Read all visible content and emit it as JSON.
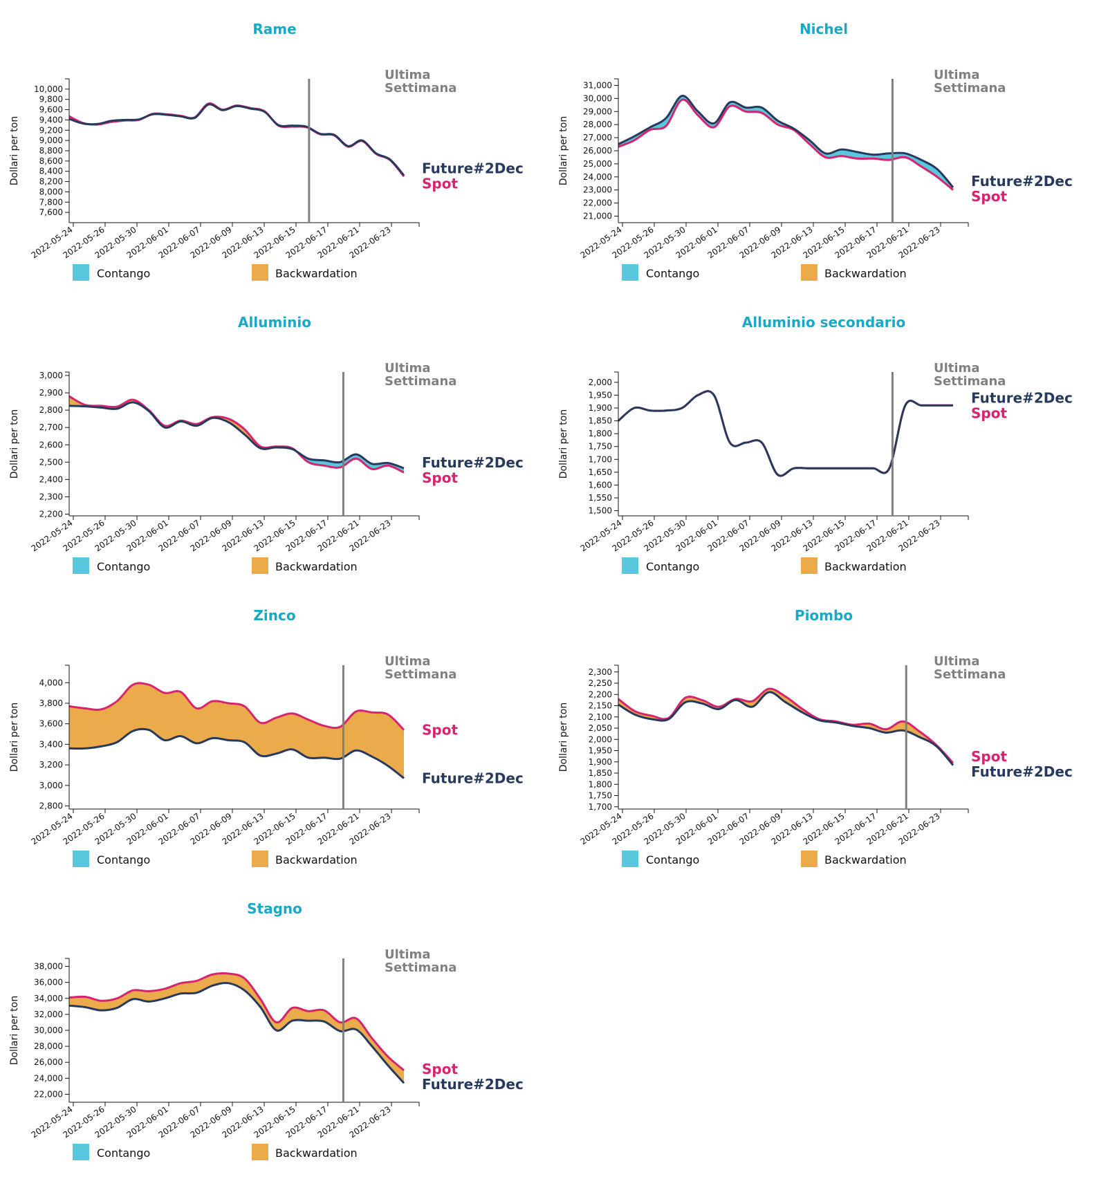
{
  "colors": {
    "title": "#1aa8c6",
    "spot": "#d6246e",
    "future": "#273a5e",
    "contango": "#5ac8dc",
    "backwardation": "#ebab4b",
    "marker": "#808080",
    "axis": "#111111"
  },
  "labels": {
    "ylabel": "Dollari per ton",
    "marker_line1": "Ultima",
    "marker_line2": "Settimana",
    "future": "Future#2Dec",
    "spot": "Spot",
    "legend_contango": "Contango",
    "legend_backwardation": "Backwardation"
  },
  "chart_data": [
    {
      "type": "area",
      "title": "Rame",
      "xlabel": "",
      "ylabel": "Dollari per ton",
      "x_ticks": [
        "2022-05-24",
        "2022-05-26",
        "2022-05-30",
        "2022-06-01",
        "2022-06-07",
        "2022-06-09",
        "2022-06-13",
        "2022-06-15",
        "2022-06-17",
        "2022-06-21",
        "2022-06-23"
      ],
      "y_ticks": [
        "7,600",
        "7,800",
        "8,000",
        "8,200",
        "8,400",
        "8,600",
        "8,800",
        "9,000",
        "9,200",
        "9,400",
        "9,600",
        "9,800",
        "10,000"
      ],
      "ylim": [
        7400,
        10200
      ],
      "marker_index": 17.2,
      "series": [
        {
          "name": "Spot",
          "values": [
            9470,
            9340,
            9310,
            9360,
            9390,
            9400,
            9520,
            9510,
            9480,
            9450,
            9720,
            9600,
            9680,
            9630,
            9570,
            9290,
            9270,
            9260,
            9120,
            9100,
            8880,
            8990,
            8740,
            8620,
            8300
          ]
        },
        {
          "name": "Future#2Dec",
          "values": [
            9420,
            9330,
            9320,
            9380,
            9400,
            9410,
            9510,
            9500,
            9470,
            9440,
            9700,
            9590,
            9670,
            9620,
            9560,
            9300,
            9290,
            9270,
            9130,
            9110,
            8890,
            9000,
            8750,
            8630,
            8320
          ]
        }
      ]
    },
    {
      "type": "area",
      "title": "Nichel",
      "xlabel": "",
      "ylabel": "Dollari per ton",
      "x_ticks": [
        "2022-05-24",
        "2022-05-26",
        "2022-05-30",
        "2022-06-01",
        "2022-06-07",
        "2022-06-09",
        "2022-06-13",
        "2022-06-15",
        "2022-06-17",
        "2022-06-21",
        "2022-06-23"
      ],
      "y_ticks": [
        "21,000",
        "22,000",
        "23,000",
        "24,000",
        "25,000",
        "26,000",
        "27,000",
        "28,000",
        "29,000",
        "30,000",
        "31,000"
      ],
      "ylim": [
        20500,
        31500
      ],
      "marker_index": 17.2,
      "series": [
        {
          "name": "Spot",
          "values": [
            26300,
            26800,
            27600,
            27900,
            29900,
            28700,
            27800,
            29400,
            29000,
            28900,
            28000,
            27600,
            26500,
            25500,
            25600,
            25400,
            25400,
            25300,
            25500,
            24800,
            24000,
            23000
          ]
        },
        {
          "name": "Future#2Dec",
          "values": [
            26500,
            27100,
            27800,
            28500,
            30200,
            29000,
            28100,
            29700,
            29300,
            29300,
            28300,
            27700,
            26800,
            25800,
            26100,
            25900,
            25700,
            25800,
            25800,
            25300,
            24600,
            23200
          ]
        }
      ]
    },
    {
      "type": "area",
      "title": "Alluminio",
      "xlabel": "",
      "ylabel": "Dollari per ton",
      "x_ticks": [
        "2022-05-24",
        "2022-05-26",
        "2022-05-30",
        "2022-06-01",
        "2022-06-07",
        "2022-06-09",
        "2022-06-13",
        "2022-06-15",
        "2022-06-17",
        "2022-06-21",
        "2022-06-23"
      ],
      "y_ticks": [
        "2,200",
        "2,300",
        "2,400",
        "2,500",
        "2,600",
        "2,700",
        "2,800",
        "2,900",
        "3,000"
      ],
      "ylim": [
        2190,
        3020
      ],
      "marker_index": 17.2,
      "series": [
        {
          "name": "Spot",
          "values": [
            2880,
            2830,
            2825,
            2820,
            2860,
            2800,
            2710,
            2740,
            2720,
            2760,
            2750,
            2690,
            2590,
            2590,
            2580,
            2500,
            2480,
            2470,
            2520,
            2460,
            2480,
            2440
          ]
        },
        {
          "name": "Future#2Dec",
          "values": [
            2825,
            2822,
            2815,
            2808,
            2845,
            2795,
            2700,
            2735,
            2710,
            2755,
            2730,
            2660,
            2580,
            2585,
            2575,
            2520,
            2510,
            2500,
            2545,
            2490,
            2495,
            2465
          ]
        }
      ]
    },
    {
      "type": "area",
      "title": "Alluminio secondario",
      "xlabel": "",
      "ylabel": "Dollari per ton",
      "x_ticks": [
        "2022-05-24",
        "2022-05-26",
        "2022-05-30",
        "2022-06-01",
        "2022-06-07",
        "2022-06-09",
        "2022-06-13",
        "2022-06-15",
        "2022-06-17",
        "2022-06-21",
        "2022-06-23"
      ],
      "y_ticks": [
        "1,500",
        "1,550",
        "1,600",
        "1,650",
        "1,700",
        "1,750",
        "1,800",
        "1,850",
        "1,900",
        "1,950",
        "2,000"
      ],
      "ylim": [
        1480,
        2040
      ],
      "marker_index": 17.2,
      "series": [
        {
          "name": "Spot",
          "values": [
            1850,
            1900,
            1890,
            1890,
            1900,
            1950,
            1950,
            1765,
            1765,
            1765,
            1640,
            1665,
            1665,
            1665,
            1665,
            1665,
            1665,
            1665,
            1910,
            1910,
            1910,
            1910
          ]
        },
        {
          "name": "Future#2Dec",
          "values": [
            1850,
            1900,
            1890,
            1890,
            1900,
            1950,
            1950,
            1765,
            1765,
            1765,
            1640,
            1665,
            1665,
            1665,
            1665,
            1665,
            1665,
            1665,
            1910,
            1910,
            1910,
            1910
          ]
        }
      ]
    },
    {
      "type": "area",
      "title": "Zinco",
      "xlabel": "",
      "ylabel": "Dollari per ton",
      "x_ticks": [
        "2022-05-24",
        "2022-05-26",
        "2022-05-30",
        "2022-06-01",
        "2022-06-07",
        "2022-06-09",
        "2022-06-13",
        "2022-06-15",
        "2022-06-17",
        "2022-06-21",
        "2022-06-23"
      ],
      "y_ticks": [
        "2,800",
        "3,000",
        "3,200",
        "3,400",
        "3,600",
        "3,800",
        "4,000"
      ],
      "ylim": [
        2770,
        4170
      ],
      "marker_index": 17.2,
      "series": [
        {
          "name": "Spot",
          "values": [
            3770,
            3750,
            3740,
            3820,
            3980,
            3980,
            3900,
            3910,
            3750,
            3820,
            3800,
            3770,
            3610,
            3660,
            3700,
            3640,
            3580,
            3570,
            3720,
            3710,
            3690,
            3540
          ]
        },
        {
          "name": "Future#2Dec",
          "values": [
            3360,
            3360,
            3380,
            3420,
            3530,
            3540,
            3440,
            3480,
            3410,
            3460,
            3440,
            3420,
            3290,
            3310,
            3350,
            3270,
            3270,
            3260,
            3340,
            3280,
            3190,
            3070
          ]
        }
      ]
    },
    {
      "type": "area",
      "title": "Piombo",
      "xlabel": "",
      "ylabel": "Dollari per ton",
      "x_ticks": [
        "2022-05-24",
        "2022-05-26",
        "2022-05-30",
        "2022-06-01",
        "2022-06-07",
        "2022-06-09",
        "2022-06-13",
        "2022-06-15",
        "2022-06-17",
        "2022-06-21",
        "2022-06-23"
      ],
      "y_ticks": [
        "1,700",
        "1,750",
        "1,800",
        "1,850",
        "1,900",
        "1,950",
        "2,000",
        "2,050",
        "2,100",
        "2,150",
        "2,200",
        "2,250",
        "2,300"
      ],
      "ylim": [
        1690,
        2330
      ],
      "marker_index": 17.2,
      "series": [
        {
          "name": "Spot",
          "values": [
            2180,
            2125,
            2105,
            2095,
            2185,
            2175,
            2145,
            2180,
            2170,
            2225,
            2190,
            2135,
            2090,
            2080,
            2065,
            2070,
            2045,
            2080,
            2035,
            1975,
            1895
          ]
        },
        {
          "name": "Future#2Dec",
          "values": [
            2155,
            2110,
            2090,
            2090,
            2165,
            2160,
            2135,
            2175,
            2145,
            2210,
            2165,
            2120,
            2085,
            2075,
            2060,
            2050,
            2030,
            2040,
            2010,
            1970,
            1885
          ]
        }
      ]
    },
    {
      "type": "area",
      "title": "Stagno",
      "xlabel": "",
      "ylabel": "Dollari per ton",
      "x_ticks": [
        "2022-05-24",
        "2022-05-26",
        "2022-05-30",
        "2022-06-01",
        "2022-06-07",
        "2022-06-09",
        "2022-06-13",
        "2022-06-15",
        "2022-06-17",
        "2022-06-21",
        "2022-06-23"
      ],
      "y_ticks": [
        "22,000",
        "24,000",
        "26,000",
        "28,000",
        "30,000",
        "32,000",
        "34,000",
        "36,000",
        "38,000"
      ],
      "ylim": [
        21000,
        39000
      ],
      "marker_index": 17.2,
      "series": [
        {
          "name": "Spot",
          "values": [
            34100,
            34200,
            33700,
            34000,
            35000,
            34900,
            35200,
            35900,
            36200,
            37000,
            37100,
            36500,
            33900,
            31000,
            32800,
            32400,
            32500,
            31000,
            31500,
            29000,
            26700,
            25000
          ]
        },
        {
          "name": "Future#2Dec",
          "values": [
            33100,
            32900,
            32500,
            32800,
            33900,
            33600,
            34000,
            34600,
            34700,
            35600,
            35900,
            35000,
            32900,
            30000,
            31200,
            31200,
            31100,
            29900,
            30100,
            28000,
            25600,
            23400
          ]
        }
      ]
    }
  ]
}
